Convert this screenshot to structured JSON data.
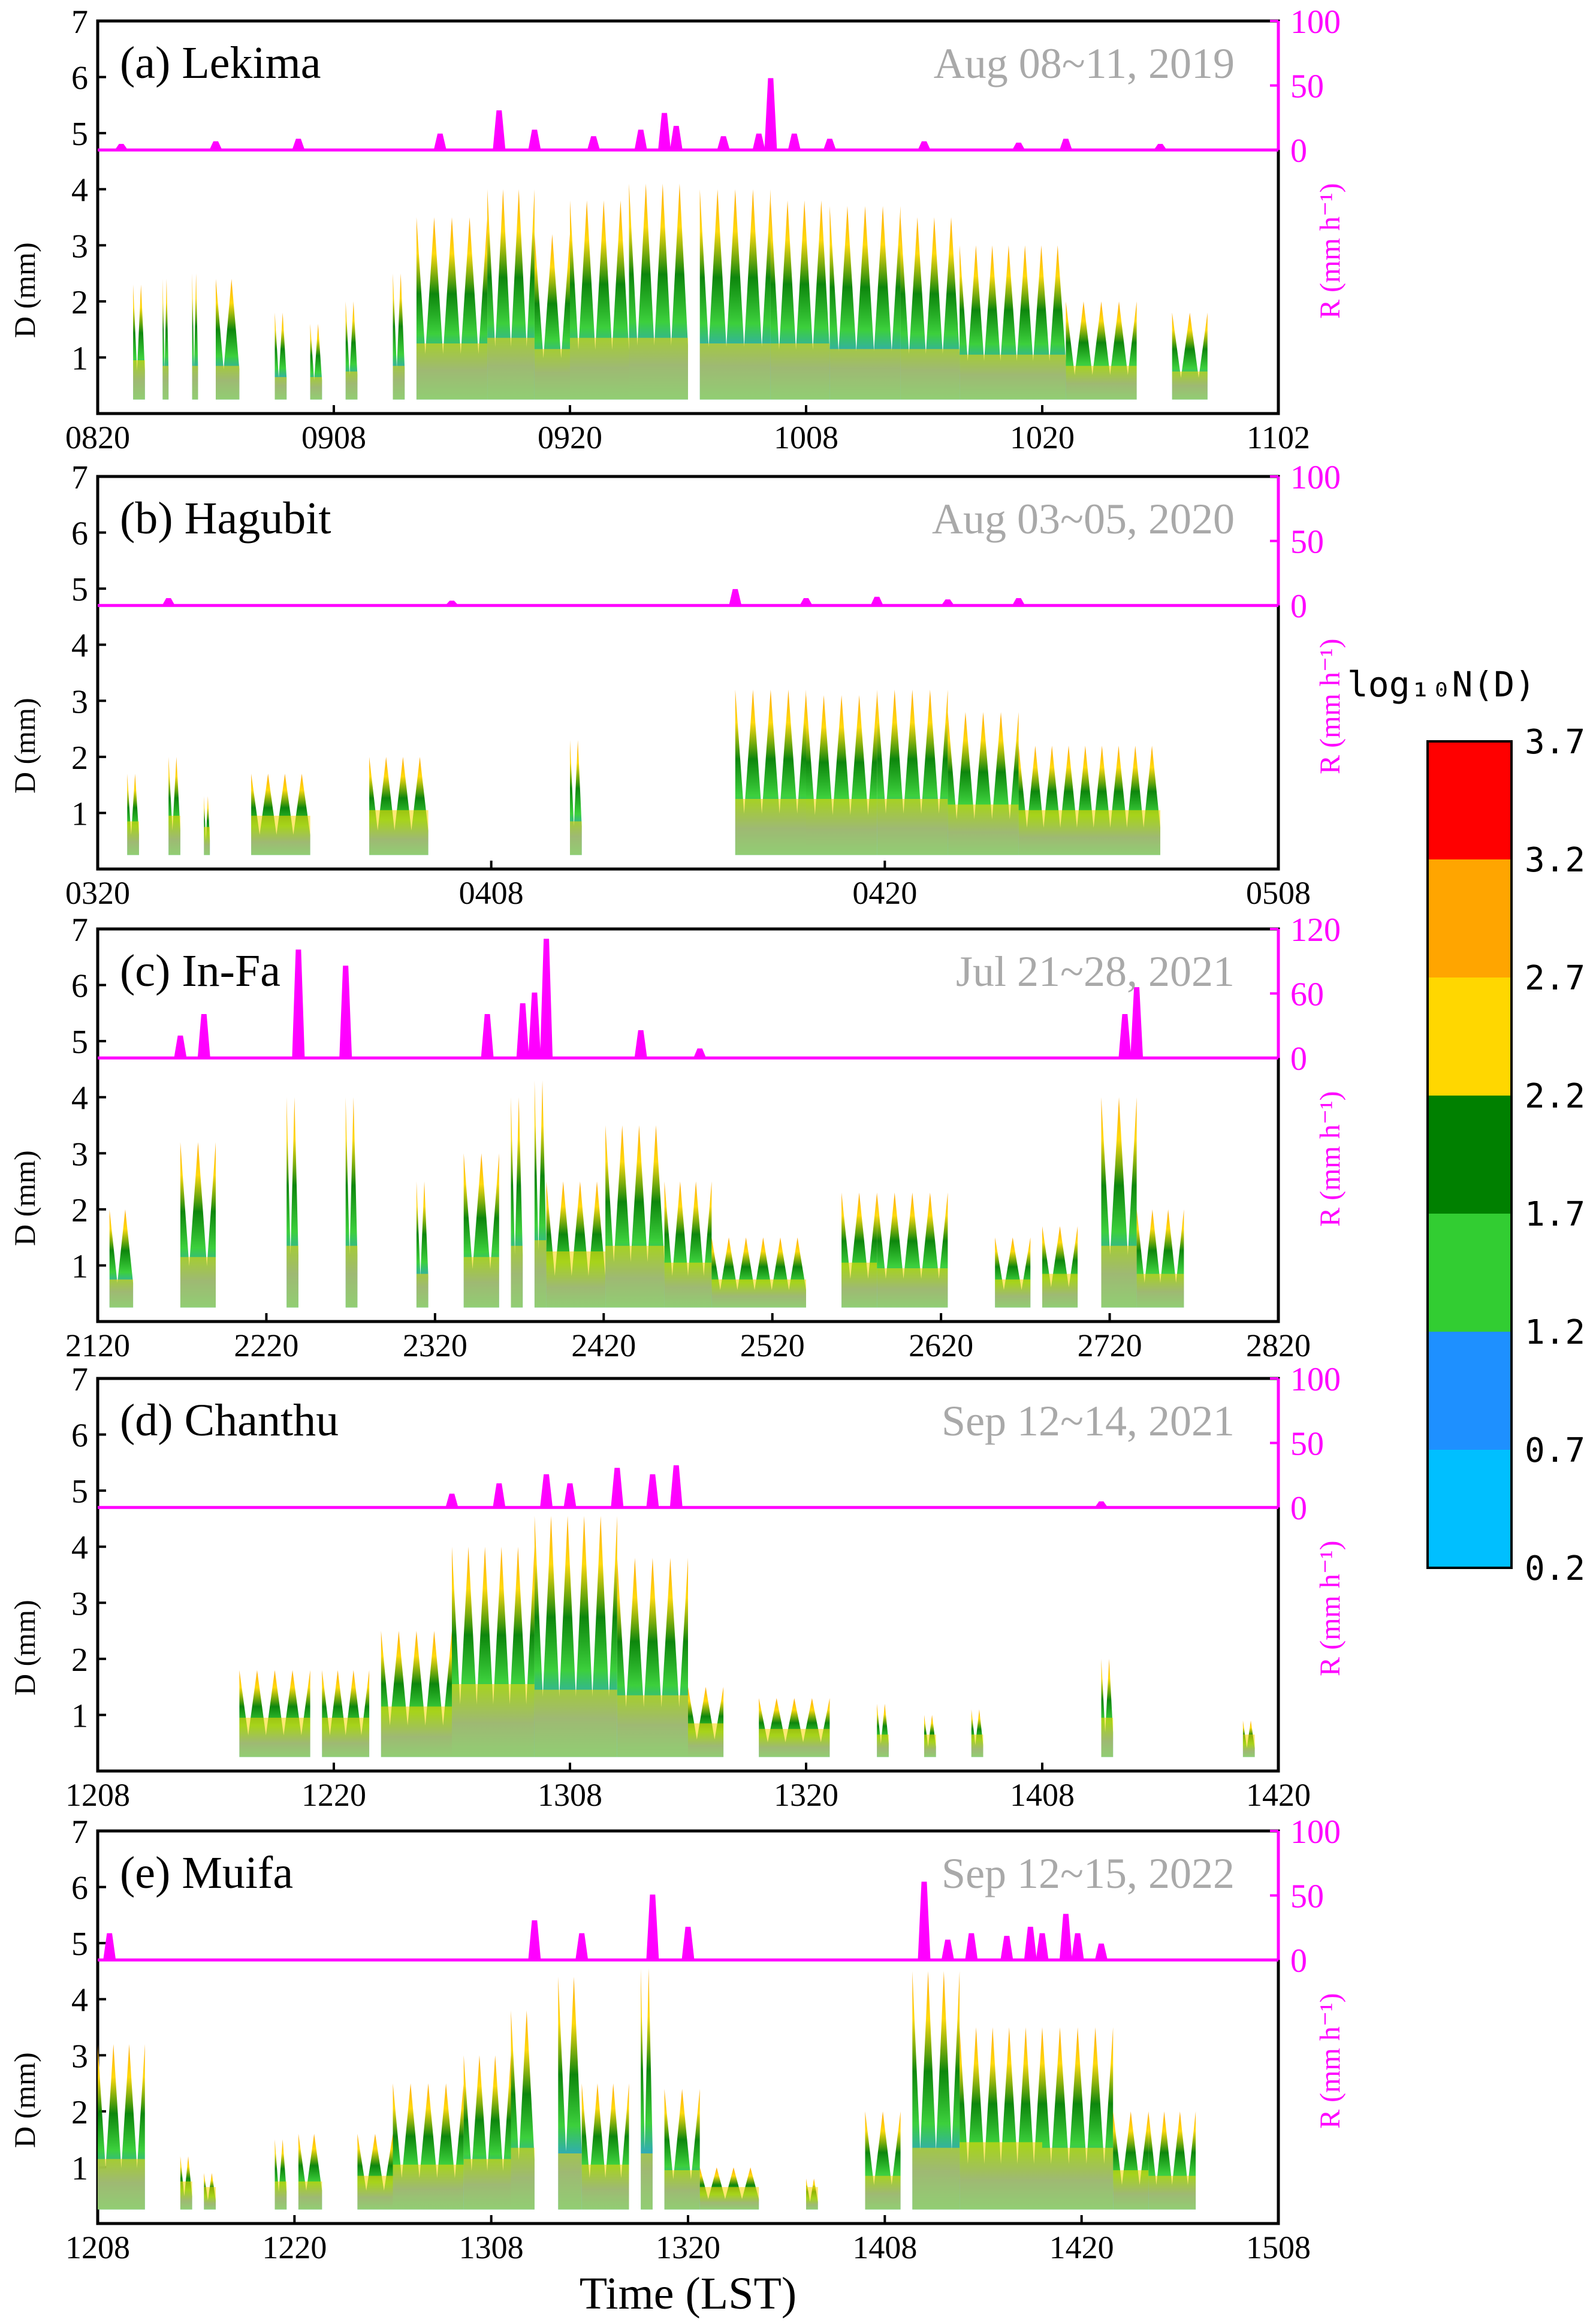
{
  "figure": {
    "xlabel": "Time (LST)",
    "left_axis": {
      "label": "D (mm)",
      "range": [
        0,
        7
      ],
      "ticks": [
        "1",
        "2",
        "3",
        "4",
        "5",
        "6",
        "7"
      ]
    },
    "colorbar": {
      "title": "log₁₀N(D)",
      "levels": [
        "0.2",
        "0.7",
        "1.2",
        "1.7",
        "2.2",
        "2.7",
        "3.2",
        "3.7"
      ],
      "colors": [
        "#00bfff",
        "#1e90ff",
        "#32cd32",
        "#008000",
        "#ffd700",
        "#ffa500",
        "#ff0000"
      ]
    },
    "colors": {
      "rain_line": "#ff00ff",
      "date_text": "#a9a9a9",
      "axis": "#000000"
    }
  },
  "chart_data": [
    {
      "type": "heatmap",
      "panel": "a",
      "title": "(a) Lekima",
      "date": "Aug 08~11, 2019",
      "xticks": [
        "0820",
        "0908",
        "0920",
        "1008",
        "1020",
        "1102"
      ],
      "rain": {
        "label": "R (mm h⁻¹)",
        "ticks": [
          "0",
          "50",
          "100"
        ],
        "max": 100,
        "peaks": [
          [
            0.02,
            4
          ],
          [
            0.1,
            6
          ],
          [
            0.17,
            8
          ],
          [
            0.29,
            12
          ],
          [
            0.34,
            30
          ],
          [
            0.37,
            15
          ],
          [
            0.42,
            10
          ],
          [
            0.46,
            15
          ],
          [
            0.48,
            28
          ],
          [
            0.49,
            18
          ],
          [
            0.53,
            10
          ],
          [
            0.56,
            12
          ],
          [
            0.57,
            55
          ],
          [
            0.59,
            12
          ],
          [
            0.62,
            8
          ],
          [
            0.7,
            6
          ],
          [
            0.78,
            5
          ],
          [
            0.82,
            8
          ],
          [
            0.9,
            4
          ]
        ]
      },
      "dsd": {
        "segments": [
          [
            0.03,
            0.04,
            2.3,
            0.6
          ],
          [
            0.055,
            0.06,
            2.4,
            0.5
          ],
          [
            0.08,
            0.085,
            2.5,
            0.5
          ],
          [
            0.1,
            0.12,
            2.4,
            0.5
          ],
          [
            0.15,
            0.16,
            1.8,
            0.3
          ],
          [
            0.18,
            0.19,
            1.6,
            0.3
          ],
          [
            0.21,
            0.22,
            2.0,
            0.4
          ],
          [
            0.25,
            0.26,
            2.5,
            0.5
          ],
          [
            0.27,
            0.33,
            3.5,
            0.9
          ],
          [
            0.33,
            0.37,
            4.0,
            1.0
          ],
          [
            0.37,
            0.4,
            3.2,
            0.8
          ],
          [
            0.4,
            0.45,
            3.8,
            1.0
          ],
          [
            0.45,
            0.5,
            4.1,
            1.0
          ],
          [
            0.51,
            0.57,
            4.0,
            0.9
          ],
          [
            0.57,
            0.62,
            3.8,
            0.9
          ],
          [
            0.62,
            0.68,
            3.7,
            0.8
          ],
          [
            0.68,
            0.73,
            3.5,
            0.8
          ],
          [
            0.73,
            0.82,
            3.0,
            0.7
          ],
          [
            0.82,
            0.88,
            2.0,
            0.5
          ],
          [
            0.91,
            0.94,
            1.8,
            0.4
          ]
        ]
      }
    },
    {
      "type": "heatmap",
      "panel": "b",
      "title": "(b) Hagubit",
      "date": "Aug 03~05, 2020",
      "xticks": [
        "0320",
        "0408",
        "0420",
        "0508"
      ],
      "rain": {
        "label": "R (mm h⁻¹)",
        "ticks": [
          "0",
          "50",
          "100"
        ],
        "max": 100,
        "peaks": [
          [
            0.06,
            5
          ],
          [
            0.3,
            3
          ],
          [
            0.54,
            12
          ],
          [
            0.6,
            5
          ],
          [
            0.66,
            6
          ],
          [
            0.72,
            4
          ],
          [
            0.78,
            5
          ]
        ]
      },
      "dsd": {
        "segments": [
          [
            0.025,
            0.035,
            1.7,
            0.5
          ],
          [
            0.06,
            0.07,
            2.0,
            0.6
          ],
          [
            0.09,
            0.095,
            1.3,
            0.4
          ],
          [
            0.13,
            0.18,
            1.7,
            0.6
          ],
          [
            0.23,
            0.28,
            2.0,
            0.7
          ],
          [
            0.4,
            0.41,
            2.3,
            0.5
          ],
          [
            0.54,
            0.6,
            3.2,
            0.9
          ],
          [
            0.6,
            0.66,
            3.1,
            0.9
          ],
          [
            0.66,
            0.72,
            3.2,
            0.9
          ],
          [
            0.72,
            0.78,
            2.8,
            0.8
          ],
          [
            0.78,
            0.9,
            2.2,
            0.7
          ]
        ]
      }
    },
    {
      "type": "heatmap",
      "panel": "c",
      "title": "(c) In-Fa",
      "date": "Jul 21~28, 2021",
      "xticks": [
        "2120",
        "2220",
        "2320",
        "2420",
        "2520",
        "2620",
        "2720",
        "2820"
      ],
      "rain": {
        "label": "R (mm h⁻¹)",
        "ticks": [
          "0",
          "60",
          "120"
        ],
        "max": 120,
        "peaks": [
          [
            0.07,
            20
          ],
          [
            0.09,
            40
          ],
          [
            0.17,
            100
          ],
          [
            0.21,
            85
          ],
          [
            0.33,
            40
          ],
          [
            0.36,
            50
          ],
          [
            0.37,
            60
          ],
          [
            0.38,
            110
          ],
          [
            0.46,
            25
          ],
          [
            0.51,
            8
          ],
          [
            0.87,
            40
          ],
          [
            0.88,
            65
          ]
        ]
      },
      "dsd": {
        "segments": [
          [
            0.01,
            0.03,
            2.0,
            0.4
          ],
          [
            0.07,
            0.1,
            3.2,
            0.8
          ],
          [
            0.16,
            0.17,
            4.0,
            1.0
          ],
          [
            0.21,
            0.22,
            4.0,
            1.0
          ],
          [
            0.27,
            0.28,
            2.5,
            0.5
          ],
          [
            0.31,
            0.34,
            3.0,
            0.8
          ],
          [
            0.35,
            0.36,
            4.0,
            1.0
          ],
          [
            0.37,
            0.38,
            4.3,
            1.1
          ],
          [
            0.38,
            0.43,
            2.5,
            0.9
          ],
          [
            0.43,
            0.48,
            3.5,
            1.0
          ],
          [
            0.48,
            0.52,
            2.5,
            0.7
          ],
          [
            0.52,
            0.6,
            1.5,
            0.4
          ],
          [
            0.63,
            0.66,
            2.3,
            0.7
          ],
          [
            0.66,
            0.72,
            2.3,
            0.6
          ],
          [
            0.76,
            0.79,
            1.5,
            0.4
          ],
          [
            0.8,
            0.83,
            1.7,
            0.5
          ],
          [
            0.85,
            0.88,
            4.0,
            1.0
          ],
          [
            0.88,
            0.92,
            2.0,
            0.5
          ]
        ]
      }
    },
    {
      "type": "heatmap",
      "panel": "d",
      "title": "(d) Chanthu",
      "date": "Sep 12~14, 2021",
      "xticks": [
        "1208",
        "1220",
        "1308",
        "1320",
        "1408",
        "1420"
      ],
      "rain": {
        "label": "R (mm h⁻¹)",
        "ticks": [
          "0",
          "50",
          "100"
        ],
        "max": 100,
        "peaks": [
          [
            0.3,
            10
          ],
          [
            0.34,
            18
          ],
          [
            0.38,
            25
          ],
          [
            0.4,
            18
          ],
          [
            0.44,
            30
          ],
          [
            0.47,
            25
          ],
          [
            0.49,
            32
          ],
          [
            0.85,
            4
          ]
        ]
      },
      "dsd": {
        "segments": [
          [
            0.12,
            0.18,
            1.8,
            0.6
          ],
          [
            0.19,
            0.23,
            1.8,
            0.6
          ],
          [
            0.24,
            0.3,
            2.5,
            0.8
          ],
          [
            0.3,
            0.37,
            4.0,
            1.2
          ],
          [
            0.37,
            0.44,
            4.6,
            1.1
          ],
          [
            0.44,
            0.5,
            3.8,
            1.0
          ],
          [
            0.5,
            0.53,
            1.5,
            0.5
          ],
          [
            0.56,
            0.62,
            1.3,
            0.4
          ],
          [
            0.66,
            0.67,
            1.2,
            0.3
          ],
          [
            0.7,
            0.71,
            1.0,
            0.3
          ],
          [
            0.74,
            0.75,
            1.1,
            0.3
          ],
          [
            0.85,
            0.86,
            2.0,
            0.6
          ],
          [
            0.97,
            0.98,
            0.9,
            0.3
          ]
        ]
      }
    },
    {
      "type": "heatmap",
      "panel": "e",
      "title": "(e) Muifa",
      "date": "Sep 12~15, 2022",
      "xticks": [
        "1208",
        "1220",
        "1308",
        "1320",
        "1408",
        "1420",
        "1508"
      ],
      "rain": {
        "label": "R (mm h⁻¹)",
        "ticks": [
          "0",
          "50",
          "100"
        ],
        "max": 100,
        "peaks": [
          [
            0.01,
            20
          ],
          [
            0.37,
            30
          ],
          [
            0.41,
            20
          ],
          [
            0.47,
            50
          ],
          [
            0.5,
            25
          ],
          [
            0.7,
            60
          ],
          [
            0.72,
            15
          ],
          [
            0.74,
            20
          ],
          [
            0.77,
            18
          ],
          [
            0.79,
            25
          ],
          [
            0.8,
            20
          ],
          [
            0.82,
            35
          ],
          [
            0.83,
            20
          ],
          [
            0.85,
            12
          ]
        ]
      },
      "dsd": {
        "segments": [
          [
            0.0,
            0.04,
            3.2,
            0.8
          ],
          [
            0.07,
            0.08,
            1.2,
            0.4
          ],
          [
            0.09,
            0.1,
            0.9,
            0.3
          ],
          [
            0.15,
            0.16,
            1.5,
            0.4
          ],
          [
            0.17,
            0.19,
            1.6,
            0.4
          ],
          [
            0.22,
            0.25,
            1.6,
            0.5
          ],
          [
            0.25,
            0.31,
            2.5,
            0.7
          ],
          [
            0.31,
            0.35,
            3.0,
            0.8
          ],
          [
            0.35,
            0.37,
            3.8,
            1.0
          ],
          [
            0.39,
            0.41,
            4.4,
            0.9
          ],
          [
            0.41,
            0.45,
            2.5,
            0.7
          ],
          [
            0.46,
            0.47,
            4.8,
            0.9
          ],
          [
            0.48,
            0.51,
            2.4,
            0.6
          ],
          [
            0.51,
            0.56,
            1.0,
            0.3
          ],
          [
            0.6,
            0.61,
            0.8,
            0.3
          ],
          [
            0.65,
            0.68,
            2.0,
            0.5
          ],
          [
            0.69,
            0.73,
            4.5,
            1.0
          ],
          [
            0.73,
            0.8,
            3.5,
            1.1
          ],
          [
            0.8,
            0.86,
            3.5,
            1.0
          ],
          [
            0.86,
            0.89,
            2.0,
            0.6
          ],
          [
            0.89,
            0.93,
            2.0,
            0.5
          ]
        ]
      }
    }
  ]
}
